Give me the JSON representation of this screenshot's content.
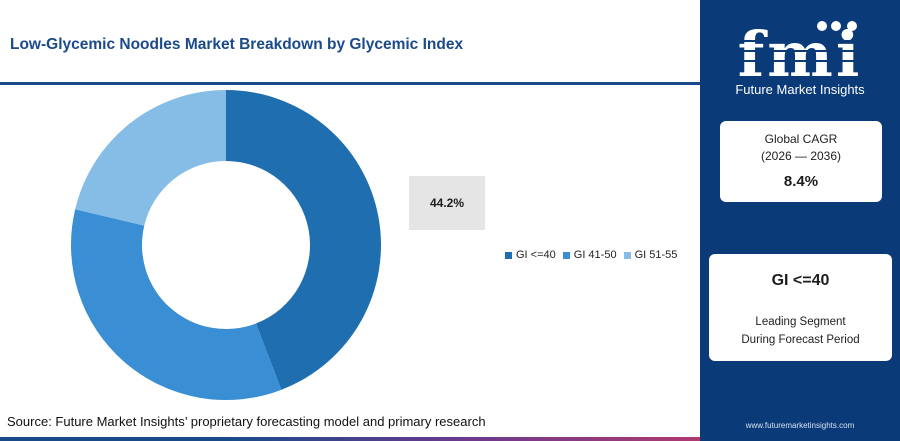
{
  "header": {
    "title": "Low-Glycemic Noodles Market Breakdown by Glycemic Index"
  },
  "chart_data": {
    "type": "pie",
    "donut": true,
    "categories": [
      "GI <=40",
      "GI 41-50",
      "GI 51-55"
    ],
    "values": [
      44.2,
      34.5,
      21.3
    ],
    "colors": [
      "#1f6fb0",
      "#3a8fd4",
      "#86bde6"
    ],
    "highlight_label": "44.2%",
    "legend_position": "right"
  },
  "source": {
    "text": "Source: Future Market Insights’ proprietary forecasting model and primary research"
  },
  "brand": {
    "logo_text": "fmi",
    "name": "Future Market Insights",
    "website": "www.futuremarketinsights.com"
  },
  "cagr_card": {
    "label": "Global CAGR",
    "period": "(2026 — 2036)",
    "value": "8.4%"
  },
  "segment_card": {
    "name": "GI <=40",
    "line1": "Leading Segment",
    "line2": "During Forecast Period"
  },
  "colors": {
    "brand_navy": "#0a3a78",
    "title_blue": "#1b4a8a"
  }
}
